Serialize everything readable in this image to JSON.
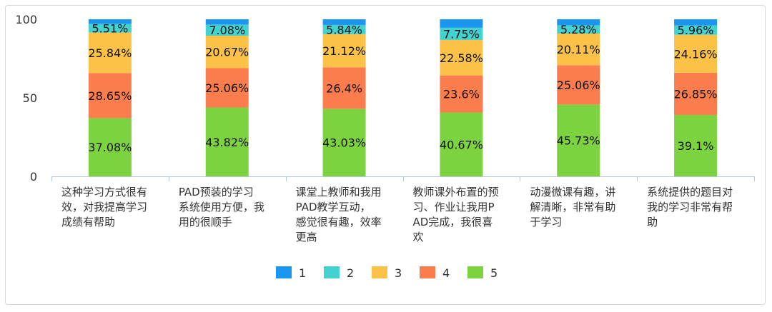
{
  "chart_data": {
    "type": "bar",
    "stacked": true,
    "categories": [
      "这种学习方式很有效，对我提高学习成绩有帮助",
      "PAD预装的学习系统使用方便，我用的很顺手",
      "课堂上教师和我用PAD教学互动，感觉很有趣，效率更高",
      "教师课外布置的预习、作业让我用PAD完成，我很喜欢",
      "动漫微课有趣，讲解清晰，非常有助于学习",
      "系统提供的题目对我的学习非常有帮助"
    ],
    "category_lines": [
      [
        "这种学习方式很有",
        "效，对我提高学习",
        "成绩有帮助"
      ],
      [
        "PAD预装的学习",
        "系统使用方便，我",
        "用的很顺手"
      ],
      [
        "课堂上教师和我用",
        "PAD教学互动，",
        "感觉很有趣，效率",
        "更高"
      ],
      [
        "教师课外布置的预",
        "习、作业让我用P",
        "AD完成，我很喜",
        "欢"
      ],
      [
        "动漫微课有趣，讲",
        "解清晰，非常有助",
        "于学习"
      ],
      [
        "系统提供的题目对",
        "我的学习非常有帮",
        "助"
      ]
    ],
    "series": [
      {
        "name": "5",
        "color": "#7dd33f",
        "values": [
          37.08,
          43.82,
          43.03,
          40.67,
          45.73,
          39.1
        ]
      },
      {
        "name": "4",
        "color": "#fb7d4e",
        "values": [
          28.65,
          25.06,
          26.4,
          23.6,
          25.06,
          26.85
        ]
      },
      {
        "name": "3",
        "color": "#fbc247",
        "values": [
          25.84,
          20.67,
          21.12,
          22.58,
          20.11,
          24.16
        ]
      },
      {
        "name": "2",
        "color": "#43d2d0",
        "values": [
          5.51,
          7.08,
          5.84,
          7.75,
          5.28,
          5.96
        ]
      },
      {
        "name": "1",
        "color": "#1b97f2",
        "values": [
          2.92,
          3.37,
          3.61,
          5.4,
          3.82,
          3.93
        ]
      }
    ],
    "data_labels": [
      [
        "37.08%",
        "43.82%",
        "43.03%",
        "40.67%",
        "45.73%",
        "39.1%"
      ],
      [
        "28.65%",
        "25.06%",
        "26.4%",
        "23.6%",
        "25.06%",
        "26.85%"
      ],
      [
        "25.84%",
        "20.67%",
        "21.12%",
        "22.58%",
        "20.11%",
        "24.16%"
      ],
      [
        "5.51%",
        "7.08%",
        "5.84%",
        "7.75%",
        "5.28%",
        "5.96%"
      ],
      [
        "",
        "",
        "",
        "",
        "",
        ""
      ]
    ],
    "y_ticks": [
      "0",
      "50",
      "100"
    ],
    "ylim": [
      0,
      100
    ],
    "legend": {
      "position": "bottom",
      "order": [
        "1",
        "2",
        "3",
        "4",
        "5"
      ]
    },
    "grid": false
  }
}
